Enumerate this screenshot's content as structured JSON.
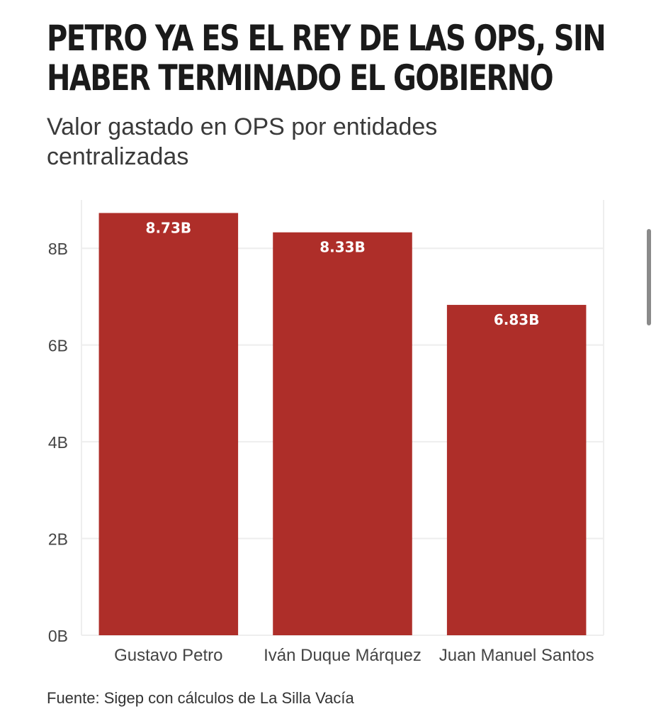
{
  "title_lines": [
    "PETRO YA ES EL REY DE LAS OPS, SIN",
    "HABER TERMINADO EL GOBIERNO"
  ],
  "subtitle": "Valor gastado en OPS por entidades centralizadas",
  "source": "Fuente: Sigep con cálculos de La Silla Vacía",
  "colors": {
    "bar": "#ae2e29",
    "grid": "#eeeeee",
    "axis_text": "#444444",
    "label": "#ffffff"
  },
  "chart_data": {
    "type": "bar",
    "categories": [
      "Gustavo Petro",
      "Iván Duque Márquez",
      "Juan Manuel Santos"
    ],
    "values": [
      8.73,
      8.33,
      6.83
    ],
    "value_labels": [
      "8.73B",
      "8.33B",
      "6.83B"
    ],
    "unit": "B",
    "ylim": [
      0,
      9
    ],
    "yticks": [
      0,
      2,
      4,
      6,
      8
    ],
    "ytick_labels": [
      "0B",
      "2B",
      "4B",
      "6B",
      "8B"
    ],
    "grid": true,
    "legend": "none"
  }
}
